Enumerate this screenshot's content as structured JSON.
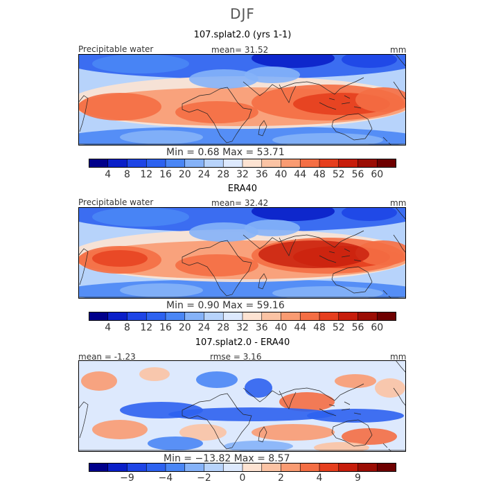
{
  "season": "DJF",
  "panels": [
    {
      "title": "107.splat2.0 (yrs 1-1)",
      "left_label": "Precipitable water",
      "center_label": "mean=   31.52",
      "units": "mm",
      "minmax": "Min =    0.68  Max =   53.71",
      "colorbar": {
        "colors": [
          "#00008b",
          "#0a1fc8",
          "#1e45e6",
          "#2d62f0",
          "#4a86f5",
          "#85b2f8",
          "#b7d3fb",
          "#dde9fd",
          "#fde3d2",
          "#fbc3a4",
          "#f99b72",
          "#f46e44",
          "#e63f1e",
          "#c71d0b",
          "#9b0d04",
          "#6e0000"
        ],
        "tick_labels": [
          "4",
          "8",
          "12",
          "16",
          "20",
          "24",
          "28",
          "32",
          "36",
          "40",
          "44",
          "48",
          "52",
          "56",
          "60"
        ]
      }
    },
    {
      "title": "ERA40",
      "left_label": "Precipitable water",
      "center_label": "mean=   32.42",
      "units": "mm",
      "minmax": "Min =    0.90  Max =   59.16",
      "colorbar": {
        "colors": [
          "#00008b",
          "#0a1fc8",
          "#1e45e6",
          "#2d62f0",
          "#4a86f5",
          "#85b2f8",
          "#b7d3fb",
          "#dde9fd",
          "#fde3d2",
          "#fbc3a4",
          "#f99b72",
          "#f46e44",
          "#e63f1e",
          "#c71d0b",
          "#9b0d04",
          "#6e0000"
        ],
        "tick_labels": [
          "4",
          "8",
          "12",
          "16",
          "20",
          "24",
          "28",
          "32",
          "36",
          "40",
          "44",
          "48",
          "52",
          "56",
          "60"
        ]
      }
    },
    {
      "title": "107.splat2.0 - ERA40",
      "left_label": "mean =  -1.23",
      "center_label": "rmse =    3.16",
      "units": "mm",
      "minmax": "Min = −13.82  Max =    8.57",
      "colorbar": {
        "colors": [
          "#00008b",
          "#0a1fc8",
          "#1e45e6",
          "#2d62f0",
          "#4a86f5",
          "#85b2f8",
          "#b7d3fb",
          "#dde9fd",
          "#fde3d2",
          "#fbc3a4",
          "#f99b72",
          "#f46e44",
          "#e63f1e",
          "#c71d0b",
          "#9b0d04",
          "#6e0000"
        ],
        "tick_labels": [
          "−9",
          "−4",
          "−2",
          "0",
          "2",
          "4",
          "9"
        ]
      }
    }
  ],
  "chart_data": [
    {
      "type": "heatmap",
      "title": "107.splat2.0 (yrs 1-1)",
      "variable": "Precipitable water",
      "units": "mm",
      "mean": 31.52,
      "min": 0.68,
      "max": 53.71,
      "colorbar_levels": [
        4,
        8,
        12,
        16,
        20,
        24,
        28,
        32,
        36,
        40,
        44,
        48,
        52,
        56,
        60
      ]
    },
    {
      "type": "heatmap",
      "title": "ERA40",
      "variable": "Precipitable water",
      "units": "mm",
      "mean": 32.42,
      "min": 0.9,
      "max": 59.16,
      "colorbar_levels": [
        4,
        8,
        12,
        16,
        20,
        24,
        28,
        32,
        36,
        40,
        44,
        48,
        52,
        56,
        60
      ]
    },
    {
      "type": "heatmap",
      "title": "107.splat2.0 - ERA40",
      "units": "mm",
      "mean": -1.23,
      "rmse": 3.16,
      "min": -13.82,
      "max": 8.57,
      "colorbar_levels": [
        -9,
        -4,
        -2,
        0,
        2,
        4,
        9
      ]
    }
  ]
}
